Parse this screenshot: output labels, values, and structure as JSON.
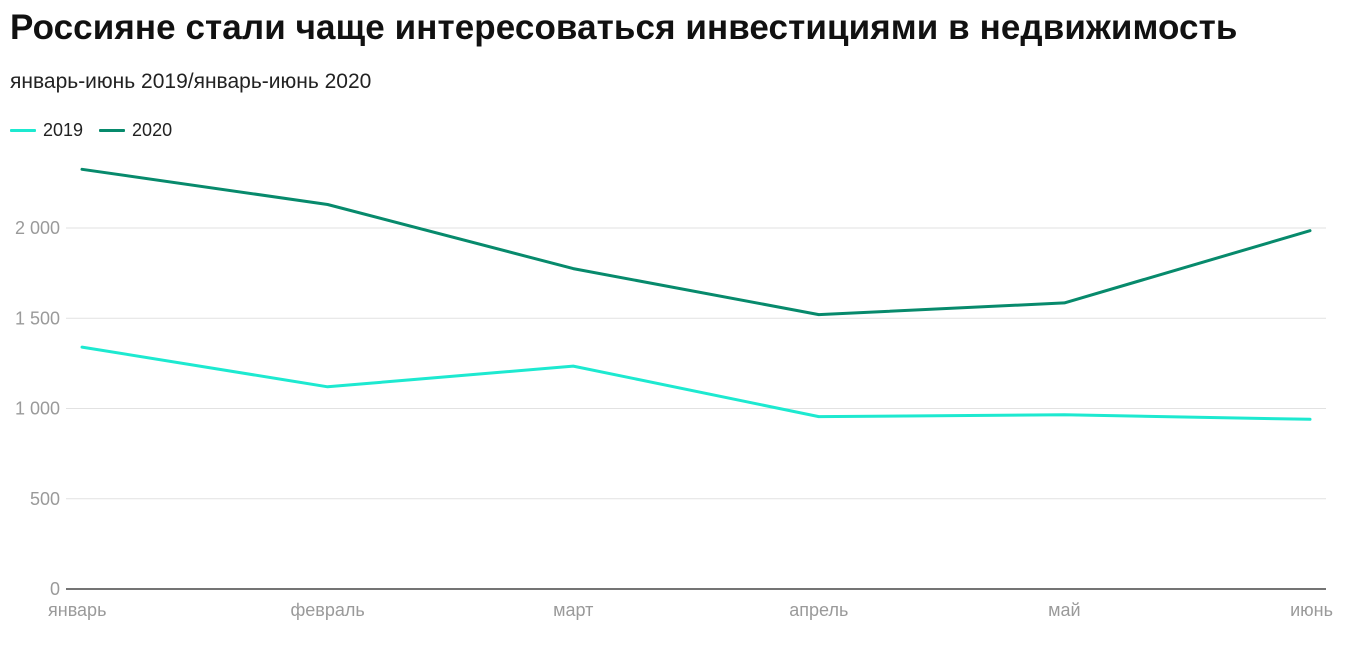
{
  "title": "Россияне стали чаще интересоваться инвестициями в недвижимость",
  "subtitle": "январь-июнь 2019/январь-июнь 2020",
  "colors": {
    "series_2019": "#1de9d0",
    "series_2020": "#078a6c",
    "grid": "#e2e2e2",
    "axis": "#222222",
    "tick_text": "#9a9a9a"
  },
  "chart_data": {
    "type": "line",
    "categories": [
      "январь",
      "февраль",
      "март",
      "апрель",
      "май",
      "июнь"
    ],
    "series": [
      {
        "name": "2019",
        "values": [
          1340,
          1120,
          1235,
          955,
          965,
          940
        ]
      },
      {
        "name": "2020",
        "values": [
          2325,
          2130,
          1775,
          1520,
          1585,
          1985
        ]
      }
    ],
    "yticks": [
      0,
      500,
      1000,
      1500,
      2000
    ],
    "ytick_labels": [
      "0",
      "500",
      "1 000",
      "1 500",
      "2 000"
    ],
    "ylim": [
      0,
      2325
    ],
    "grid": true,
    "legend_position": "top-left"
  }
}
